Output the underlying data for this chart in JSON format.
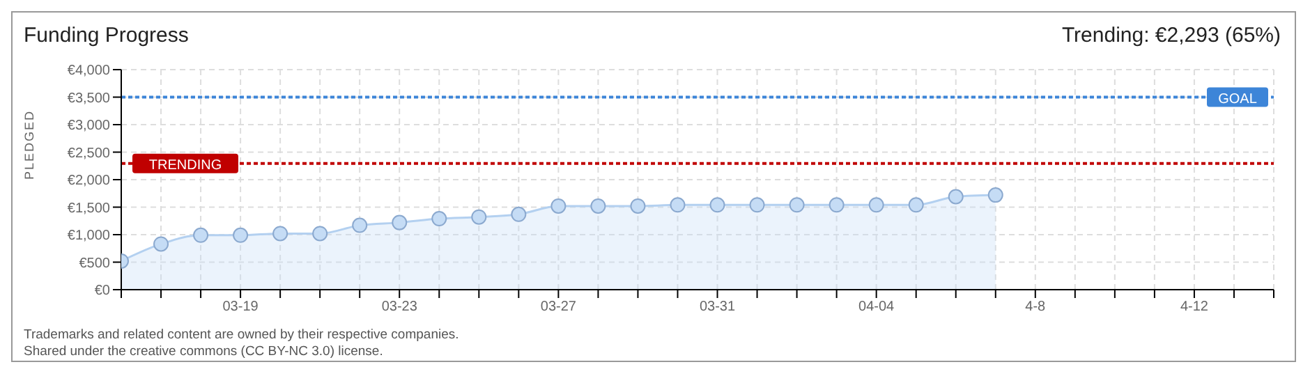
{
  "chart_data": {
    "type": "area",
    "title": "Funding Progress",
    "subtitle": "Trending: €2,293 (65%)",
    "ylabel": "PLEDGED",
    "categories": [
      null,
      null,
      null,
      "03-19",
      null,
      null,
      null,
      "03-23",
      null,
      null,
      null,
      "03-27",
      null,
      null,
      null,
      "03-31",
      null,
      null,
      null,
      "04-04",
      null,
      null,
      null,
      "4-8",
      null,
      null,
      null,
      "4-12",
      null,
      null
    ],
    "series": [
      {
        "color": "#c5dcf5",
        "values": [
          520,
          830,
          990,
          990,
          1020,
          1020,
          1170,
          1220,
          1290,
          1320,
          1370,
          1520,
          1520,
          1520,
          1540,
          1540,
          1540,
          1540,
          1540,
          1540,
          1540,
          1690,
          1720,
          null,
          null,
          null,
          null,
          null,
          null,
          null
        ]
      }
    ],
    "ylim": [
      0,
      4000
    ],
    "yticks": [
      {
        "value": 0,
        "label": "€0"
      },
      {
        "value": 500,
        "label": "€500"
      },
      {
        "value": 1000,
        "label": "€1,000"
      },
      {
        "value": 1500,
        "label": "€1,500"
      },
      {
        "value": 2000,
        "label": "€2,000"
      },
      {
        "value": 2500,
        "label": "€2,500"
      },
      {
        "value": 3000,
        "label": "€3,000"
      },
      {
        "value": 3500,
        "label": "€3,500"
      },
      {
        "value": 4000,
        "label": "€4,000"
      }
    ],
    "ref_lines": [
      {
        "axis": "y",
        "value": 3500,
        "label": "GOAL",
        "color": "#3d85d8",
        "line_style": "dotted"
      },
      {
        "axis": "y",
        "value": 2293,
        "label": "TRENDING",
        "color": "#c00000",
        "line_style": "dotted"
      }
    ],
    "grid": true,
    "marker": "circle",
    "annotations": [
      "Trademarks and related content are owned by their respective companies.",
      "Shared under the creative commons (CC BY-NC 3.0) license."
    ]
  }
}
